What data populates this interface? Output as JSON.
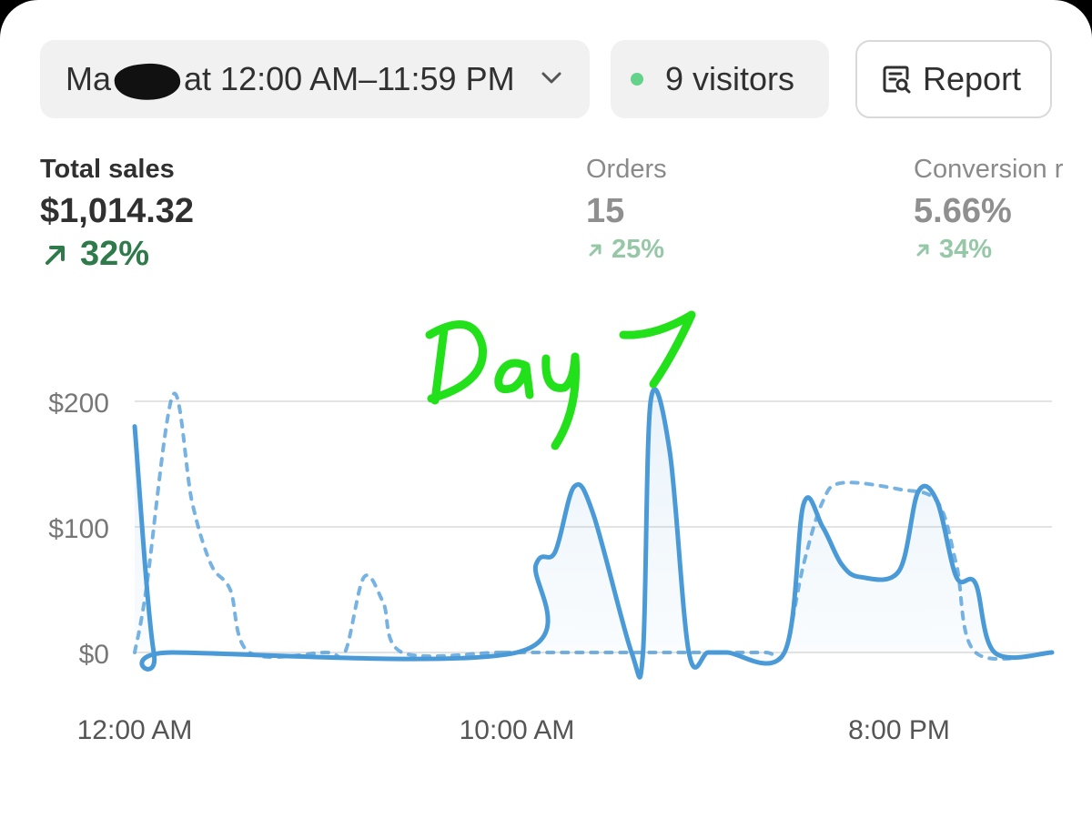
{
  "header": {
    "date_prefix": "Ma",
    "date_suffix": "at 12:00 AM–11:59 PM",
    "visitors_label": "9 visitors",
    "visitors_dot_color": "#63d28a",
    "report_label": "Report"
  },
  "metrics": [
    {
      "label": "Total sales",
      "value": "$1,014.32",
      "delta": "32%"
    },
    {
      "label": "Orders",
      "value": "15",
      "delta": "25%"
    },
    {
      "label": "Conversion r",
      "value": "5.66%",
      "delta": "34%"
    }
  ],
  "icons": {
    "date_dropdown": "chevron-down-icon",
    "visitors": "live-dot-icon",
    "report": "report-icon",
    "delta": "arrow-up-right-icon"
  },
  "colors": {
    "accent_line": "#4a9ad8",
    "positive": "#2f7a4a",
    "positive_dim": "#96c7a6",
    "annotation": "#22e01a"
  },
  "annotation": {
    "text": "Day 7"
  },
  "chart_data": {
    "type": "line",
    "x_tick_labels": [
      "12:00 AM",
      "10:00 AM",
      "8:00 PM"
    ],
    "y_tick_labels": [
      "$200",
      "$100",
      "$0"
    ],
    "ylim": [
      0,
      200
    ],
    "xlim": [
      0,
      24
    ],
    "grid": true,
    "series": [
      {
        "style": "solid",
        "area_fill": true,
        "x": [
          0,
          0.5,
          1,
          10,
          10.5,
          11,
          11.5,
          12,
          13,
          13.3,
          13.5,
          14,
          14.5,
          15,
          15.5,
          17,
          17.5,
          18,
          18.5,
          19,
          20,
          20.5,
          21,
          21.5,
          22,
          22.5,
          24
        ],
        "y": [
          180,
          0,
          0,
          0,
          70,
          80,
          132,
          110,
          0,
          0,
          200,
          160,
          0,
          0,
          0,
          0,
          118,
          100,
          70,
          60,
          65,
          128,
          120,
          60,
          55,
          0,
          0
        ]
      },
      {
        "style": "dashed",
        "area_fill": false,
        "x": [
          0,
          0.3,
          1,
          1.5,
          2,
          2.5,
          3,
          5,
          5.5,
          6,
          6.5,
          7,
          9.5,
          10,
          15,
          16.5,
          17,
          17.5,
          18,
          18.5,
          20,
          21,
          21.5,
          22,
          24
        ],
        "y": [
          0,
          50,
          205,
          120,
          70,
          50,
          0,
          0,
          0,
          60,
          40,
          0,
          0,
          0,
          0,
          0,
          0,
          70,
          120,
          135,
          130,
          120,
          70,
          0,
          0
        ]
      }
    ]
  }
}
